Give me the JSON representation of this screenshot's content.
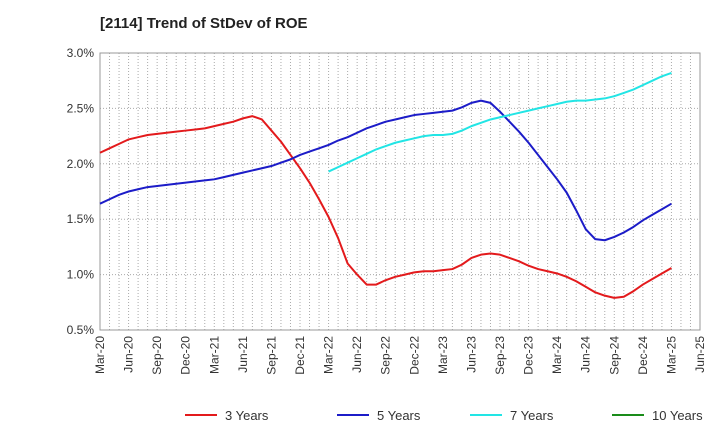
{
  "chart_data": {
    "type": "line",
    "title": "[2114]  Trend of StDev of ROE",
    "xlabel": "",
    "ylabel": "",
    "ylim": [
      0.5,
      3.0
    ],
    "yticks": [
      "0.5%",
      "1.0%",
      "1.5%",
      "2.0%",
      "2.5%",
      "3.0%"
    ],
    "ytick_values": [
      0.5,
      1.0,
      1.5,
      2.0,
      2.5,
      3.0
    ],
    "xticks": [
      "Mar-20",
      "Jun-20",
      "Sep-20",
      "Dec-20",
      "Mar-21",
      "Jun-21",
      "Sep-21",
      "Dec-21",
      "Mar-22",
      "Jun-22",
      "Sep-22",
      "Dec-22",
      "Mar-23",
      "Jun-23",
      "Sep-23",
      "Dec-23",
      "Mar-24",
      "Jun-24",
      "Sep-24",
      "Dec-24",
      "Mar-25",
      "Jun-25"
    ],
    "grid": true,
    "legend_position": "bottom",
    "series": [
      {
        "name": "3 Years",
        "color": "#e31a1c",
        "points": [
          [
            "Mar-20",
            2.1
          ],
          [
            "Apr-20",
            2.14
          ],
          [
            "May-20",
            2.18
          ],
          [
            "Jun-20",
            2.22
          ],
          [
            "Jul-20",
            2.24
          ],
          [
            "Aug-20",
            2.26
          ],
          [
            "Sep-20",
            2.27
          ],
          [
            "Oct-20",
            2.28
          ],
          [
            "Nov-20",
            2.29
          ],
          [
            "Dec-20",
            2.3
          ],
          [
            "Jan-21",
            2.31
          ],
          [
            "Feb-21",
            2.32
          ],
          [
            "Mar-21",
            2.34
          ],
          [
            "Apr-21",
            2.36
          ],
          [
            "May-21",
            2.38
          ],
          [
            "Jun-21",
            2.41
          ],
          [
            "Jul-21",
            2.43
          ],
          [
            "Aug-21",
            2.4
          ],
          [
            "Sep-21",
            2.3
          ],
          [
            "Oct-21",
            2.2
          ],
          [
            "Nov-21",
            2.08
          ],
          [
            "Dec-21",
            1.96
          ],
          [
            "Jan-22",
            1.83
          ],
          [
            "Feb-22",
            1.68
          ],
          [
            "Mar-22",
            1.52
          ],
          [
            "Apr-22",
            1.33
          ],
          [
            "May-22",
            1.1
          ],
          [
            "Jun-22",
            1.0
          ],
          [
            "Jul-22",
            0.91
          ],
          [
            "Aug-22",
            0.91
          ],
          [
            "Sep-22",
            0.95
          ],
          [
            "Oct-22",
            0.98
          ],
          [
            "Nov-22",
            1.0
          ],
          [
            "Dec-22",
            1.02
          ],
          [
            "Jan-23",
            1.03
          ],
          [
            "Feb-23",
            1.03
          ],
          [
            "Mar-23",
            1.04
          ],
          [
            "Apr-23",
            1.05
          ],
          [
            "May-23",
            1.09
          ],
          [
            "Jun-23",
            1.15
          ],
          [
            "Jul-23",
            1.18
          ],
          [
            "Aug-23",
            1.19
          ],
          [
            "Sep-23",
            1.18
          ],
          [
            "Oct-23",
            1.15
          ],
          [
            "Nov-23",
            1.12
          ],
          [
            "Dec-23",
            1.08
          ],
          [
            "Jan-24",
            1.05
          ],
          [
            "Feb-24",
            1.03
          ],
          [
            "Mar-24",
            1.01
          ],
          [
            "Apr-24",
            0.98
          ],
          [
            "May-24",
            0.94
          ],
          [
            "Jun-24",
            0.89
          ],
          [
            "Jul-24",
            0.84
          ],
          [
            "Aug-24",
            0.81
          ],
          [
            "Sep-24",
            0.79
          ],
          [
            "Oct-24",
            0.8
          ],
          [
            "Nov-24",
            0.85
          ],
          [
            "Dec-24",
            0.91
          ],
          [
            "Jan-25",
            0.96
          ],
          [
            "Feb-25",
            1.01
          ],
          [
            "Mar-25",
            1.06
          ]
        ]
      },
      {
        "name": "5 Years",
        "color": "#1c1cc8",
        "points": [
          [
            "Mar-20",
            1.64
          ],
          [
            "Apr-20",
            1.68
          ],
          [
            "May-20",
            1.72
          ],
          [
            "Jun-20",
            1.75
          ],
          [
            "Jul-20",
            1.77
          ],
          [
            "Aug-20",
            1.79
          ],
          [
            "Sep-20",
            1.8
          ],
          [
            "Oct-20",
            1.81
          ],
          [
            "Nov-20",
            1.82
          ],
          [
            "Dec-20",
            1.83
          ],
          [
            "Jan-21",
            1.84
          ],
          [
            "Feb-21",
            1.85
          ],
          [
            "Mar-21",
            1.86
          ],
          [
            "Apr-21",
            1.88
          ],
          [
            "May-21",
            1.9
          ],
          [
            "Jun-21",
            1.92
          ],
          [
            "Jul-21",
            1.94
          ],
          [
            "Aug-21",
            1.96
          ],
          [
            "Sep-21",
            1.98
          ],
          [
            "Oct-21",
            2.01
          ],
          [
            "Nov-21",
            2.04
          ],
          [
            "Dec-21",
            2.08
          ],
          [
            "Jan-22",
            2.11
          ],
          [
            "Feb-22",
            2.14
          ],
          [
            "Mar-22",
            2.17
          ],
          [
            "Apr-22",
            2.21
          ],
          [
            "May-22",
            2.24
          ],
          [
            "Jun-22",
            2.28
          ],
          [
            "Jul-22",
            2.32
          ],
          [
            "Aug-22",
            2.35
          ],
          [
            "Sep-22",
            2.38
          ],
          [
            "Oct-22",
            2.4
          ],
          [
            "Nov-22",
            2.42
          ],
          [
            "Dec-22",
            2.44
          ],
          [
            "Jan-23",
            2.45
          ],
          [
            "Feb-23",
            2.46
          ],
          [
            "Mar-23",
            2.47
          ],
          [
            "Apr-23",
            2.48
          ],
          [
            "May-23",
            2.51
          ],
          [
            "Jun-23",
            2.55
          ],
          [
            "Jul-23",
            2.57
          ],
          [
            "Aug-23",
            2.55
          ],
          [
            "Sep-23",
            2.47
          ],
          [
            "Oct-23",
            2.38
          ],
          [
            "Nov-23",
            2.29
          ],
          [
            "Dec-23",
            2.19
          ],
          [
            "Jan-24",
            2.08
          ],
          [
            "Feb-24",
            1.97
          ],
          [
            "Mar-24",
            1.86
          ],
          [
            "Apr-24",
            1.74
          ],
          [
            "May-24",
            1.58
          ],
          [
            "Jun-24",
            1.41
          ],
          [
            "Jul-24",
            1.32
          ],
          [
            "Aug-24",
            1.31
          ],
          [
            "Sep-24",
            1.34
          ],
          [
            "Oct-24",
            1.38
          ],
          [
            "Nov-24",
            1.43
          ],
          [
            "Dec-24",
            1.49
          ],
          [
            "Jan-25",
            1.54
          ],
          [
            "Feb-25",
            1.59
          ],
          [
            "Mar-25",
            1.64
          ]
        ]
      },
      {
        "name": "7 Years",
        "color": "#22e5e5",
        "points": [
          [
            "Mar-22",
            1.93
          ],
          [
            "Apr-22",
            1.97
          ],
          [
            "May-22",
            2.01
          ],
          [
            "Jun-22",
            2.05
          ],
          [
            "Jul-22",
            2.09
          ],
          [
            "Aug-22",
            2.13
          ],
          [
            "Sep-22",
            2.16
          ],
          [
            "Oct-22",
            2.19
          ],
          [
            "Nov-22",
            2.21
          ],
          [
            "Dec-22",
            2.23
          ],
          [
            "Jan-23",
            2.25
          ],
          [
            "Feb-23",
            2.26
          ],
          [
            "Mar-23",
            2.26
          ],
          [
            "Apr-23",
            2.27
          ],
          [
            "May-23",
            2.3
          ],
          [
            "Jun-23",
            2.34
          ],
          [
            "Jul-23",
            2.37
          ],
          [
            "Aug-23",
            2.4
          ],
          [
            "Sep-23",
            2.42
          ],
          [
            "Oct-23",
            2.44
          ],
          [
            "Nov-23",
            2.46
          ],
          [
            "Dec-23",
            2.48
          ],
          [
            "Jan-24",
            2.5
          ],
          [
            "Feb-24",
            2.52
          ],
          [
            "Mar-24",
            2.54
          ],
          [
            "Apr-24",
            2.56
          ],
          [
            "May-24",
            2.57
          ],
          [
            "Jun-24",
            2.57
          ],
          [
            "Jul-24",
            2.58
          ],
          [
            "Aug-24",
            2.59
          ],
          [
            "Sep-24",
            2.61
          ],
          [
            "Oct-24",
            2.64
          ],
          [
            "Nov-24",
            2.67
          ],
          [
            "Dec-24",
            2.71
          ],
          [
            "Jan-25",
            2.75
          ],
          [
            "Feb-25",
            2.79
          ],
          [
            "Mar-25",
            2.82
          ]
        ]
      },
      {
        "name": "10 Years",
        "color": "#1a8c1a",
        "points": []
      }
    ]
  }
}
